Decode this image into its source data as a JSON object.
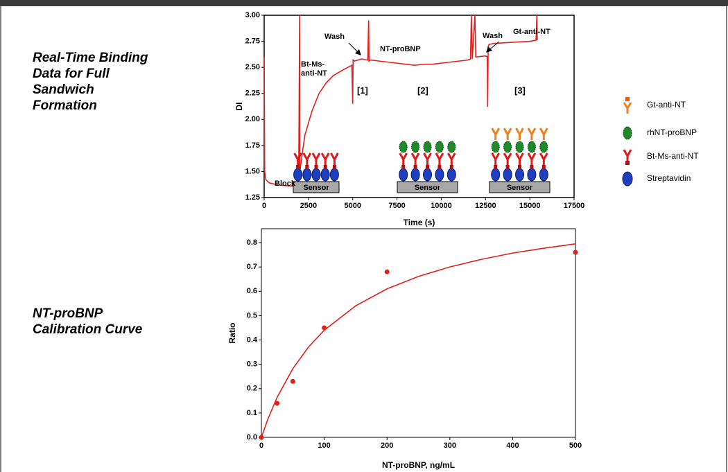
{
  "slide_labels": [
    "Real-Time Binding\nData for Full\nSandwich\nFormation",
    "NT-proBNP\nCalibration Curve"
  ],
  "chart_data": [
    {
      "type": "line",
      "xlabel": "Time (s)",
      "ylabel": "DI",
      "xlim": [
        0,
        17500
      ],
      "xticks": [
        0,
        2500,
        5000,
        7500,
        10000,
        12500,
        15000,
        17500
      ],
      "ylim": [
        1.25,
        3.0
      ],
      "yticks": [
        1.25,
        {
          "value": 1.5,
          "label": "1.50"
        },
        1.75,
        {
          "value": 2,
          "label": "2.00"
        },
        2.25,
        {
          "value": 2.5,
          "label": "2.50"
        },
        2.75,
        {
          "value": 3,
          "label": "3.00"
        }
      ],
      "series": [
        {
          "color": "#e0201c",
          "x": [
            0,
            30,
            100,
            300,
            800,
            1500,
            1950,
            2000,
            2010,
            2050,
            2300,
            2700,
            3100,
            3500,
            3900,
            4500,
            4950,
            5000,
            5020,
            5100,
            5500,
            5850,
            5900,
            5920,
            6000,
            6500,
            7000,
            7500,
            8000,
            8500,
            9000,
            9500,
            10000,
            10500,
            11000,
            11500,
            11650,
            11700,
            11750,
            11900,
            11950,
            12000,
            12500,
            12600,
            12620,
            12650,
            12700,
            13000,
            14000,
            15000,
            15350,
            15400,
            15420
          ],
          "values": [
            2.6,
            1.5,
            1.42,
            1.39,
            1.37,
            1.36,
            1.36,
            3.0,
            1.45,
            1.55,
            1.85,
            2.08,
            2.25,
            2.35,
            2.42,
            2.48,
            2.52,
            2.15,
            2.57,
            2.56,
            2.58,
            2.57,
            2.95,
            2.56,
            2.57,
            2.56,
            2.55,
            2.54,
            2.53,
            2.52,
            2.53,
            2.53,
            2.54,
            2.55,
            2.56,
            2.57,
            2.58,
            3.0,
            2.58,
            3.0,
            2.6,
            2.6,
            2.61,
            2.6,
            2.12,
            2.7,
            2.72,
            2.73,
            2.74,
            2.75,
            2.76,
            3.0,
            2.76
          ]
        }
      ],
      "annotations": [
        "Block",
        "Bt-Ms-\nanti-NT",
        "Wash",
        "NT-proBNP",
        "Wash",
        "Gt-anti-NT",
        "[1]",
        "[2]",
        "[3]"
      ],
      "sensor_labels": [
        "Sensor",
        "Sensor",
        "Sensor"
      ],
      "diagram_legend": [
        "Gt-anti-NT",
        "rhNT-proBNP",
        "Bt-Ms-anti-NT",
        "Streptavidin"
      ]
    },
    {
      "type": "scatter",
      "xlabel": "NT-proBNP, ng/mL",
      "ylabel": "Ratio",
      "xlim": [
        0,
        500
      ],
      "xticks": [
        0,
        100,
        200,
        300,
        400,
        500
      ],
      "ylim": [
        0,
        0.857
      ],
      "yticks": [
        {
          "value": 0,
          "label": "0.0"
        },
        0.1,
        0.2,
        0.3,
        0.4,
        0.5,
        0.6,
        0.7,
        0.8
      ],
      "series": [
        {
          "mode": "markers",
          "color": "#e0201c",
          "x": [
            0,
            25,
            50,
            100,
            200,
            500
          ],
          "values": [
            0,
            0.14,
            0.23,
            0.45,
            0.68,
            0.76
          ]
        },
        {
          "mode": "line",
          "color": "#e0201c",
          "x": [
            0,
            10,
            25,
            50,
            75,
            100,
            150,
            200,
            250,
            300,
            350,
            400,
            450,
            500
          ],
          "values": [
            0,
            0.073,
            0.164,
            0.282,
            0.371,
            0.44,
            0.54,
            0.61,
            0.661,
            0.7,
            0.731,
            0.757,
            0.777,
            0.795
          ]
        }
      ]
    }
  ]
}
